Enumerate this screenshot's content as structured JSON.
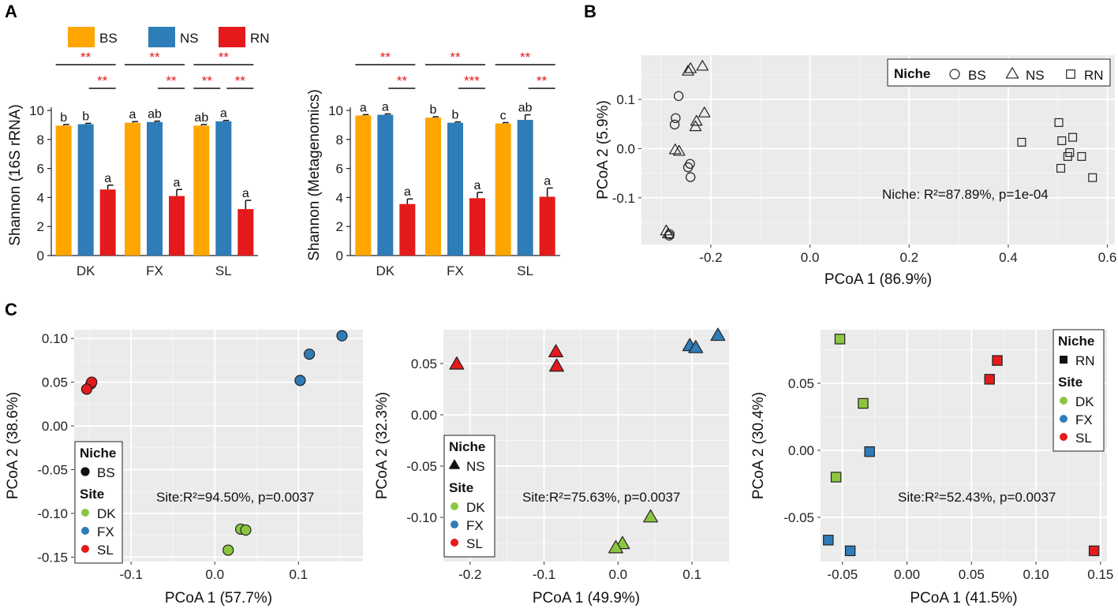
{
  "panel_labels": [
    "A",
    "B",
    "C"
  ],
  "colors": {
    "BS": "#ffa500",
    "NS": "#2e7cb8",
    "RN": "#e41a1c",
    "DK": "#8cc63f",
    "FX": "#2e7cb8",
    "SL": "#e41a1c",
    "panel_bg": "#ebebeb",
    "grid": "#ffffff",
    "star": "#e41a1c"
  },
  "legend_A": {
    "items": [
      {
        "label": "BS",
        "color": "#ffa500"
      },
      {
        "label": "NS",
        "color": "#2e7cb8"
      },
      {
        "label": "RN",
        "color": "#e41a1c"
      }
    ]
  },
  "chart_data": [
    {
      "id": "A1",
      "type": "bar",
      "ylabel": "Shannon (16S rRNA)",
      "ylim": [
        0,
        10
      ],
      "yticks": [
        "0",
        "2",
        "4",
        "6",
        "8",
        "10"
      ],
      "categories": [
        "DK",
        "FX",
        "SL"
      ],
      "series": [
        {
          "name": "BS",
          "values": [
            8.95,
            9.15,
            8.95
          ],
          "err": [
            0.08,
            0.08,
            0.08
          ]
        },
        {
          "name": "NS",
          "values": [
            9.05,
            9.2,
            9.25
          ],
          "err": [
            0.06,
            0.06,
            0.06
          ]
        },
        {
          "name": "RN",
          "values": [
            4.55,
            4.1,
            3.2
          ],
          "err": [
            0.3,
            0.45,
            0.6
          ]
        }
      ],
      "letters": [
        [
          "b",
          "b",
          "a"
        ],
        [
          "a",
          "ab",
          "a"
        ],
        [
          "ab",
          "a",
          "a"
        ]
      ],
      "significance": [
        [
          "**",
          "**",
          ""
        ],
        [
          "**",
          "**",
          ""
        ],
        [
          "**",
          "**",
          "**"
        ]
      ]
    },
    {
      "id": "A2",
      "type": "bar",
      "ylabel": "Shannon (Metagenomics)",
      "ylim": [
        0,
        10
      ],
      "yticks": [
        "0",
        "2",
        "4",
        "6",
        "8",
        "10"
      ],
      "categories": [
        "DK",
        "FX",
        "SL"
      ],
      "series": [
        {
          "name": "BS",
          "values": [
            9.65,
            9.5,
            9.1
          ],
          "err": [
            0.06,
            0.06,
            0.06
          ]
        },
        {
          "name": "NS",
          "values": [
            9.7,
            9.15,
            9.35
          ],
          "err": [
            0.06,
            0.06,
            0.35
          ]
        },
        {
          "name": "RN",
          "values": [
            3.55,
            3.95,
            4.05
          ],
          "err": [
            0.35,
            0.4,
            0.6
          ]
        }
      ],
      "letters": [
        [
          "a",
          "a",
          "a"
        ],
        [
          "b",
          "b",
          "a"
        ],
        [
          "c",
          "ab",
          "a"
        ]
      ],
      "significance": [
        [
          "**",
          "**",
          ""
        ],
        [
          "**",
          "***",
          ""
        ],
        [
          "**",
          "**",
          ""
        ]
      ]
    },
    {
      "id": "B",
      "type": "scatter",
      "xlabel": "PCoA 1 (86.9%)",
      "ylabel": "PCoA 2 (5.9%)",
      "xlim": [
        -0.34,
        0.615
      ],
      "ylim": [
        -0.195,
        0.19
      ],
      "xticks": [
        -0.2,
        0.0,
        0.2,
        0.4,
        0.6
      ],
      "xtick_labels": [
        "-0.2",
        "0.0",
        "0.2",
        "0.4",
        "0.6"
      ],
      "yticks": [
        -0.1,
        0.0,
        0.1
      ],
      "ytick_labels": [
        "-0.1",
        "0.0",
        "0.1"
      ],
      "legend": {
        "title": "Niche",
        "items": [
          {
            "label": "BS",
            "shape": "circle"
          },
          {
            "label": "NS",
            "shape": "triangle"
          },
          {
            "label": "RN",
            "shape": "square"
          }
        ]
      },
      "annotation": "Niche: R²=87.89%, p=1e-04",
      "points": [
        {
          "group": "BS",
          "x": -0.265,
          "y": 0.107
        },
        {
          "group": "BS",
          "x": -0.271,
          "y": 0.062
        },
        {
          "group": "BS",
          "x": -0.273,
          "y": 0.049
        },
        {
          "group": "BS",
          "x": -0.242,
          "y": -0.031
        },
        {
          "group": "BS",
          "x": -0.246,
          "y": -0.038
        },
        {
          "group": "BS",
          "x": -0.241,
          "y": -0.058
        },
        {
          "group": "BS",
          "x": -0.283,
          "y": -0.174
        },
        {
          "group": "BS",
          "x": -0.284,
          "y": -0.177
        },
        {
          "group": "NS",
          "x": -0.217,
          "y": 0.167
        },
        {
          "group": "NS",
          "x": -0.241,
          "y": 0.162
        },
        {
          "group": "NS",
          "x": -0.246,
          "y": 0.157
        },
        {
          "group": "NS",
          "x": -0.213,
          "y": 0.072
        },
        {
          "group": "NS",
          "x": -0.229,
          "y": 0.055
        },
        {
          "group": "NS",
          "x": -0.231,
          "y": 0.044
        },
        {
          "group": "NS",
          "x": -0.272,
          "y": -0.003
        },
        {
          "group": "NS",
          "x": -0.264,
          "y": -0.006
        },
        {
          "group": "NS",
          "x": -0.29,
          "y": -0.168
        },
        {
          "group": "NS",
          "x": -0.286,
          "y": -0.174
        },
        {
          "group": "RN",
          "x": 0.427,
          "y": 0.013
        },
        {
          "group": "RN",
          "x": 0.502,
          "y": 0.053
        },
        {
          "group": "RN",
          "x": 0.508,
          "y": 0.016
        },
        {
          "group": "RN",
          "x": 0.53,
          "y": 0.023
        },
        {
          "group": "RN",
          "x": 0.524,
          "y": -0.008
        },
        {
          "group": "RN",
          "x": 0.52,
          "y": -0.016
        },
        {
          "group": "RN",
          "x": 0.548,
          "y": -0.016
        },
        {
          "group": "RN",
          "x": 0.506,
          "y": -0.04
        },
        {
          "group": "RN",
          "x": 0.57,
          "y": -0.059
        }
      ]
    },
    {
      "id": "C1",
      "type": "scatter",
      "xlabel": "PCoA 1 (57.7%)",
      "ylabel": "PCoA 2 (38.6%)",
      "xlim": [
        -0.168,
        0.177
      ],
      "ylim": [
        -0.155,
        0.11
      ],
      "xticks": [
        -0.1,
        0.0,
        0.1
      ],
      "xtick_labels": [
        "-0.1",
        "0.0",
        "0.1"
      ],
      "yticks": [
        0.1,
        0.05,
        0.0,
        -0.05,
        -0.1,
        -0.15
      ],
      "ytick_labels": [
        "0.10",
        "0.05",
        "0.00",
        "-0.05",
        "-0.10",
        "-0.15"
      ],
      "shape": "circle",
      "legend": {
        "niche_title": "Niche",
        "niche_label": "BS",
        "site_title": "Site",
        "sites": [
          "DK",
          "FX",
          "SL"
        ]
      },
      "annotation": "Site:R²=94.50%, p=0.0037",
      "points": [
        {
          "site": "SL",
          "x": -0.148,
          "y": 0.048
        },
        {
          "site": "SL",
          "x": -0.147,
          "y": 0.05
        },
        {
          "site": "SL",
          "x": -0.153,
          "y": 0.042
        },
        {
          "site": "FX",
          "x": 0.152,
          "y": 0.103
        },
        {
          "site": "FX",
          "x": 0.113,
          "y": 0.082
        },
        {
          "site": "FX",
          "x": 0.102,
          "y": 0.052
        },
        {
          "site": "DK",
          "x": 0.031,
          "y": -0.118
        },
        {
          "site": "DK",
          "x": 0.037,
          "y": -0.119
        },
        {
          "site": "DK",
          "x": 0.016,
          "y": -0.142
        }
      ]
    },
    {
      "id": "C2",
      "type": "scatter",
      "xlabel": "PCoA 1 (49.9%)",
      "ylabel": "PCoA 2 (32.3%)",
      "xlim": [
        -0.236,
        0.15
      ],
      "ylim": [
        -0.143,
        0.083
      ],
      "xticks": [
        -0.2,
        -0.1,
        0.0,
        0.1
      ],
      "xtick_labels": [
        "-0.2",
        "-0.1",
        "0.0",
        "0.1"
      ],
      "yticks": [
        0.05,
        0.0,
        -0.05,
        -0.1
      ],
      "ytick_labels": [
        "0.05",
        "0.00",
        "-0.05",
        "-0.10"
      ],
      "shape": "triangle",
      "legend": {
        "niche_title": "Niche",
        "niche_label": "NS",
        "site_title": "Site",
        "sites": [
          "DK",
          "FX",
          "SL"
        ]
      },
      "annotation": "Site:R²=75.63%, p=0.0037",
      "points": [
        {
          "site": "SL",
          "x": -0.218,
          "y": 0.049
        },
        {
          "site": "SL",
          "x": -0.084,
          "y": 0.061
        },
        {
          "site": "SL",
          "x": -0.083,
          "y": 0.047
        },
        {
          "site": "FX",
          "x": 0.135,
          "y": 0.077
        },
        {
          "site": "FX",
          "x": 0.097,
          "y": 0.067
        },
        {
          "site": "FX",
          "x": 0.105,
          "y": 0.065
        },
        {
          "site": "DK",
          "x": 0.044,
          "y": -0.1
        },
        {
          "site": "DK",
          "x": 0.006,
          "y": -0.126
        },
        {
          "site": "DK",
          "x": -0.003,
          "y": -0.13
        }
      ]
    },
    {
      "id": "C3",
      "type": "scatter",
      "xlabel": "PCoA 1 (41.5%)",
      "ylabel": "PCoA 2 (30.4%)",
      "xlim": [
        -0.067,
        0.155
      ],
      "ylim": [
        -0.083,
        0.09
      ],
      "xticks": [
        -0.05,
        0.0,
        0.05,
        0.1,
        0.15
      ],
      "xtick_labels": [
        "-0.05",
        "0.00",
        "0.05",
        "0.10",
        "0.15"
      ],
      "yticks": [
        0.05,
        0.0,
        -0.05
      ],
      "ytick_labels": [
        "0.05",
        "0.00",
        "-0.05"
      ],
      "shape": "square",
      "legend": {
        "niche_title": "Niche",
        "niche_label": "RN",
        "site_title": "Site",
        "sites": [
          "DK",
          "FX",
          "SL"
        ]
      },
      "annotation": "Site:R²=52.43%, p=0.0037",
      "points": [
        {
          "site": "DK",
          "x": -0.052,
          "y": 0.083
        },
        {
          "site": "DK",
          "x": -0.034,
          "y": 0.035
        },
        {
          "site": "DK",
          "x": -0.055,
          "y": -0.02
        },
        {
          "site": "FX",
          "x": -0.029,
          "y": -0.001
        },
        {
          "site": "FX",
          "x": -0.061,
          "y": -0.067
        },
        {
          "site": "FX",
          "x": -0.044,
          "y": -0.075
        },
        {
          "site": "SL",
          "x": 0.07,
          "y": 0.067
        },
        {
          "site": "SL",
          "x": 0.064,
          "y": 0.053
        },
        {
          "site": "SL",
          "x": 0.145,
          "y": -0.075
        }
      ]
    }
  ]
}
